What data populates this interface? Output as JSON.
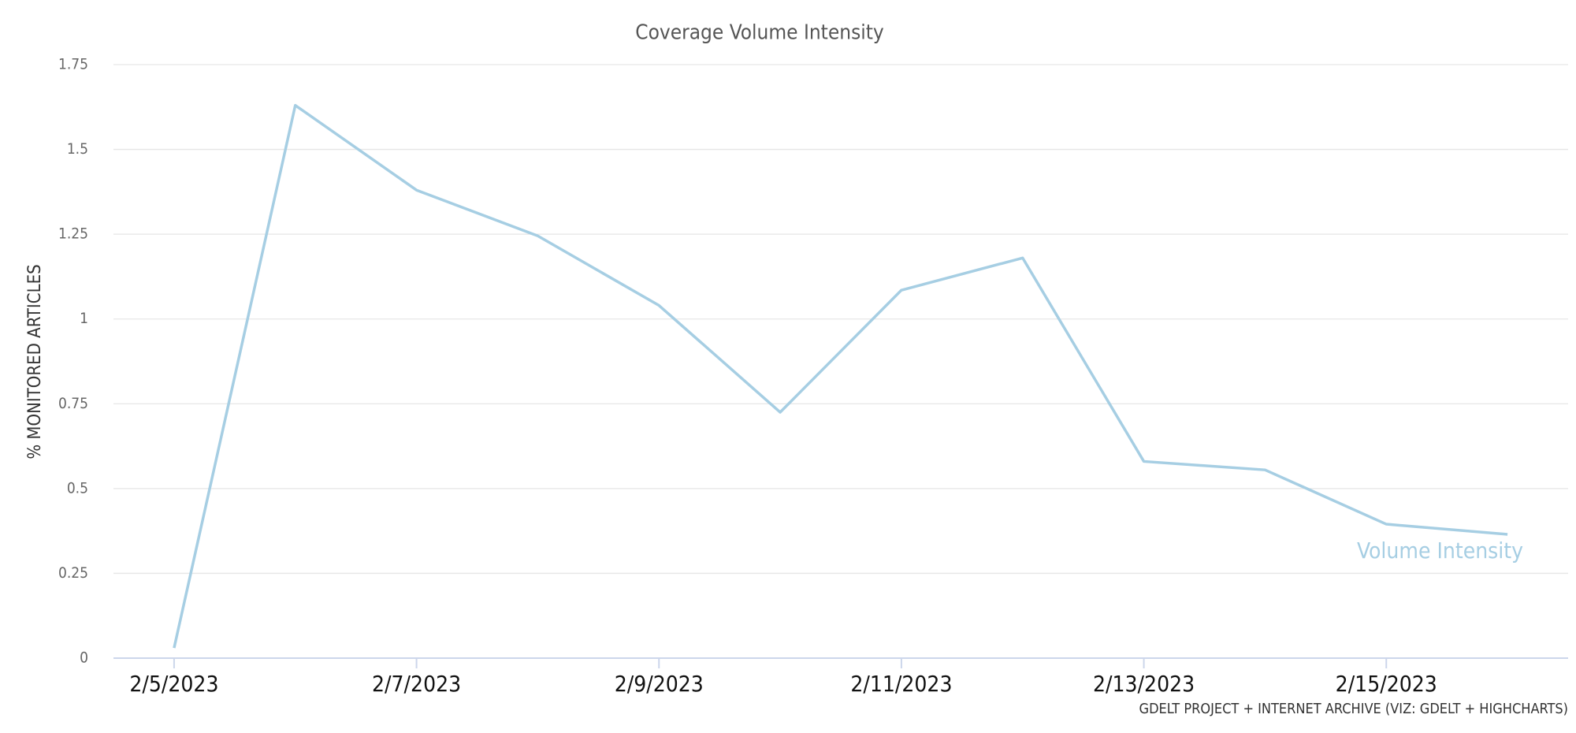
{
  "chart_data": {
    "type": "line",
    "title": "Coverage Volume Intensity",
    "y_label": "% MONITORED ARTICLES",
    "credit": "GDELT PROJECT + INTERNET ARCHIVE (VIZ: GDELT + HIGHCHARTS)",
    "categories": [
      "2/5/2023",
      null,
      "2/7/2023",
      null,
      "2/9/2023",
      null,
      "2/11/2023",
      null,
      "2/13/2023",
      null,
      "2/15/2023",
      null
    ],
    "series": [
      {
        "name": "Volume Intensity",
        "color": "#a6cee3",
        "values": [
          0.03,
          1.63,
          1.38,
          1.245,
          1.04,
          0.725,
          1.085,
          1.18,
          0.58,
          0.555,
          0.395,
          0.365
        ]
      }
    ],
    "ylim": [
      0,
      1.75
    ],
    "yticks": [
      0,
      0.25,
      0.5,
      0.75,
      1,
      1.25,
      1.5,
      1.75
    ],
    "grid": true
  }
}
